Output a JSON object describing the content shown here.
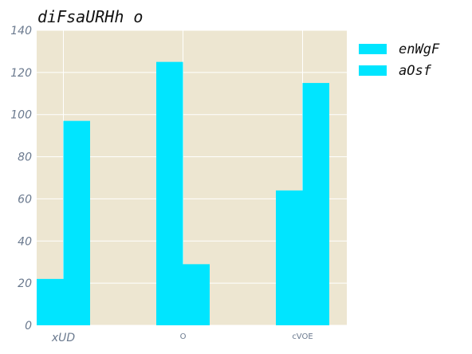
{
  "chart_data": {
    "type": "bar",
    "title": "diFsaURHh o",
    "categories": [
      "xUD",
      "O",
      "cVOE"
    ],
    "series": [
      {
        "name": "enWgF",
        "values": [
          22,
          125,
          64
        ],
        "color": "#00e5ff"
      },
      {
        "name": "aOsf",
        "values": [
          97,
          29,
          115
        ],
        "color": "#00e5ff"
      }
    ],
    "ylim": [
      0,
      140
    ],
    "yticks": [
      0,
      20,
      40,
      60,
      80,
      100,
      120,
      140
    ],
    "xlabel": "",
    "ylabel": "",
    "grid": true,
    "legend_position": "right",
    "plot_background": "#ede6d1",
    "grid_color": "#ffffff",
    "tick_label_color": "#6b7a8f"
  }
}
